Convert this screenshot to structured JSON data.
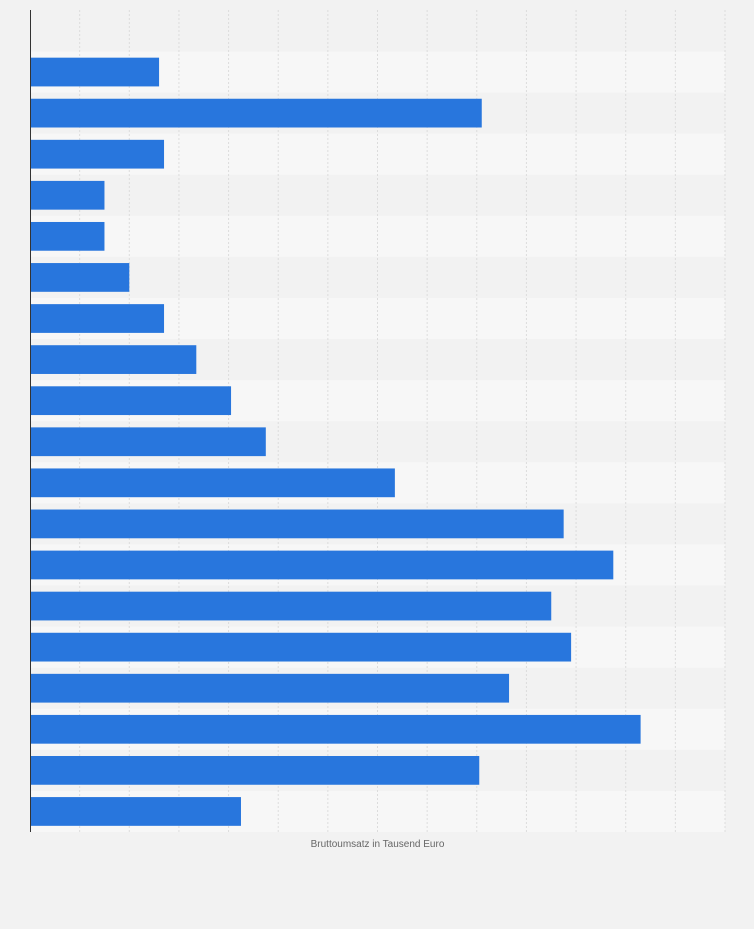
{
  "chart_data": {
    "type": "bar",
    "orientation": "horizontal",
    "xlabel": "Bruttoumsatz in Tausend Euro",
    "ylabel": "",
    "xlim": [
      0,
      14
    ],
    "grid": true,
    "legend": "none",
    "series_color": "#2876dd",
    "series": [
      {
        "values": [
          2.6,
          9.1,
          2.7,
          1.5,
          1.5,
          2.0,
          2.7,
          3.35,
          4.05,
          4.75,
          7.35,
          10.75,
          11.75,
          10.5,
          10.9,
          9.65,
          12.3,
          9.05,
          4.25
        ]
      }
    ]
  }
}
